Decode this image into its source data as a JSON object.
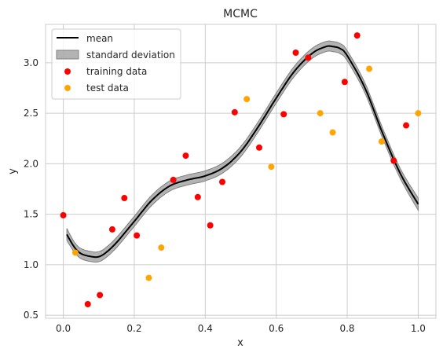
{
  "chart_data": {
    "type": "scatter",
    "title": "MCMC",
    "xlabel": "x",
    "ylabel": "y",
    "xlim": [
      -0.05,
      1.05
    ],
    "ylim": [
      0.47,
      3.38
    ],
    "xticks": [
      0.0,
      0.2,
      0.4,
      0.6,
      0.8,
      1.0
    ],
    "yticks": [
      0.5,
      1.0,
      1.5,
      2.0,
      2.5,
      3.0
    ],
    "grid": true,
    "legend_position": "top-left",
    "legend": [
      "mean",
      "standard deviation",
      "training data",
      "test data"
    ],
    "colors": {
      "mean": "#000000",
      "standard_deviation": "#808080",
      "training": "#ff0000",
      "test": "#ffa500"
    },
    "mean_curve": {
      "x": [
        0.01,
        0.03,
        0.05,
        0.08,
        0.1,
        0.12,
        0.15,
        0.2,
        0.25,
        0.3,
        0.35,
        0.4,
        0.45,
        0.5,
        0.55,
        0.6,
        0.65,
        0.7,
        0.74,
        0.76,
        0.78,
        0.8,
        0.85,
        0.9,
        0.95,
        1.0
      ],
      "y": [
        1.3,
        1.18,
        1.11,
        1.08,
        1.08,
        1.12,
        1.22,
        1.43,
        1.64,
        1.78,
        1.84,
        1.88,
        1.96,
        2.12,
        2.37,
        2.65,
        2.91,
        3.09,
        3.16,
        3.16,
        3.14,
        3.07,
        2.75,
        2.3,
        1.9,
        1.6
      ],
      "std": [
        0.06,
        0.05,
        0.05,
        0.05,
        0.05,
        0.05,
        0.05,
        0.05,
        0.05,
        0.05,
        0.05,
        0.05,
        0.05,
        0.05,
        0.05,
        0.05,
        0.05,
        0.05,
        0.05,
        0.05,
        0.05,
        0.05,
        0.05,
        0.05,
        0.05,
        0.06
      ]
    },
    "training_data": {
      "x": [
        0.0,
        0.069,
        0.103,
        0.138,
        0.172,
        0.207,
        0.31,
        0.345,
        0.379,
        0.414,
        0.448,
        0.483,
        0.552,
        0.621,
        0.655,
        0.69,
        0.793,
        0.828,
        0.931,
        0.966
      ],
      "y": [
        1.49,
        0.61,
        0.7,
        1.35,
        1.66,
        1.29,
        1.84,
        2.08,
        1.67,
        1.39,
        1.82,
        2.51,
        2.16,
        2.49,
        3.1,
        3.05,
        2.81,
        3.27,
        2.03,
        2.38
      ]
    },
    "test_data": {
      "x": [
        0.034,
        0.241,
        0.276,
        0.517,
        0.586,
        0.724,
        0.759,
        0.862,
        0.897,
        1.0
      ],
      "y": [
        1.12,
        0.87,
        1.17,
        2.64,
        1.97,
        2.5,
        2.31,
        2.94,
        2.22,
        2.5
      ]
    }
  }
}
